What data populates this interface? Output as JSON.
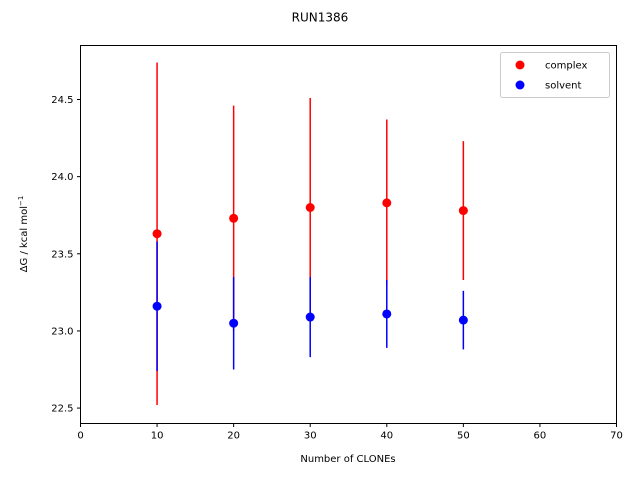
{
  "chart_data": {
    "type": "scatter",
    "title": "RUN1386",
    "xlabel": "Number of CLONEs",
    "ylabel_main": "ΔG / kcal mol",
    "ylabel_sup": "−1",
    "xlim": [
      0,
      70
    ],
    "ylim": [
      22.4,
      24.85
    ],
    "xticks": [
      0,
      10,
      20,
      30,
      40,
      50,
      60,
      70
    ],
    "yticks": [
      22.5,
      23.0,
      23.5,
      24.0,
      24.5
    ],
    "xtick_labels": [
      "0",
      "10",
      "20",
      "30",
      "40",
      "50",
      "60",
      "70"
    ],
    "ytick_labels": [
      "22.5",
      "23.0",
      "23.5",
      "24.0",
      "24.5"
    ],
    "grid": false,
    "legend_position": "top-right",
    "series": [
      {
        "name": "complex",
        "color": "#ff0000",
        "x": [
          10,
          20,
          30,
          40,
          50
        ],
        "y": [
          23.63,
          23.73,
          23.8,
          23.83,
          23.78
        ],
        "yerr": [
          1.11,
          0.73,
          0.71,
          0.54,
          0.45
        ]
      },
      {
        "name": "solvent",
        "color": "#0000ff",
        "x": [
          10,
          20,
          30,
          40,
          50
        ],
        "y": [
          23.16,
          23.05,
          23.09,
          23.11,
          23.07
        ],
        "yerr": [
          0.42,
          0.3,
          0.26,
          0.22,
          0.19
        ]
      }
    ]
  }
}
